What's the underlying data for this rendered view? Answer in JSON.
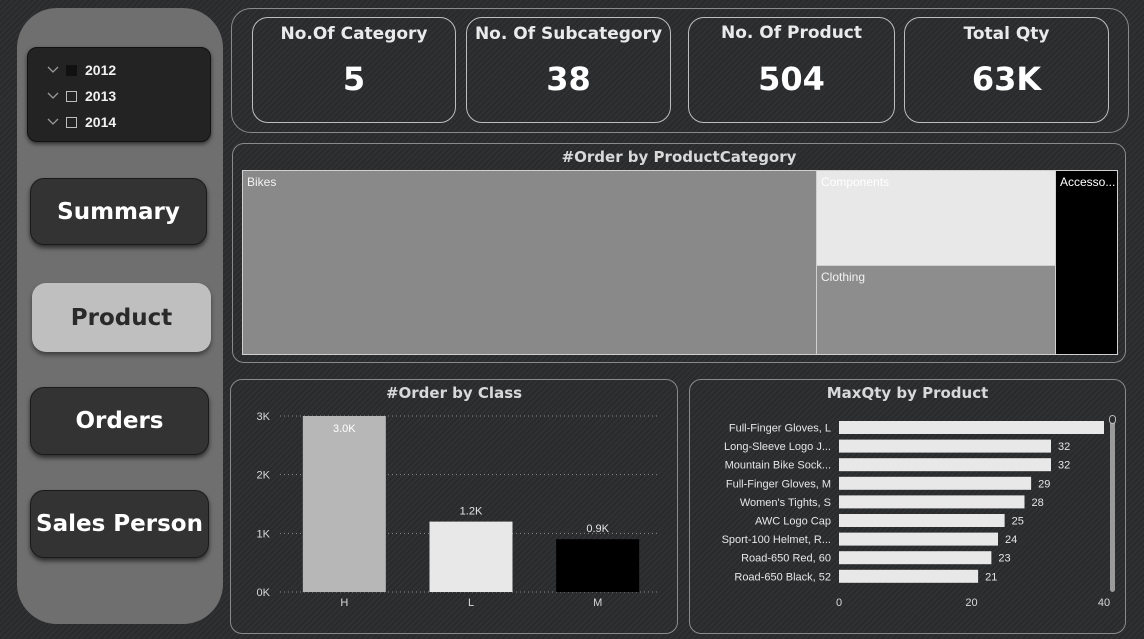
{
  "slicer": {
    "years": [
      {
        "label": "2012",
        "checked": true
      },
      {
        "label": "2013",
        "checked": false
      },
      {
        "label": "2014",
        "checked": false
      }
    ]
  },
  "nav": {
    "summary": "Summary",
    "product": "Product",
    "orders": "Orders",
    "sales_person": "Sales Person"
  },
  "kpis": [
    {
      "title": "No.Of Category",
      "value": "5"
    },
    {
      "title": "No. Of Subcategory",
      "value": "38"
    },
    {
      "title": "No. Of Product",
      "value": "504"
    },
    {
      "title": "Total Qty",
      "value": "63K"
    }
  ],
  "treemap": {
    "title": "#Order by ProductCategory",
    "cells": [
      {
        "label": "Bikes",
        "color": "#898989",
        "text_color": "#f2f2f2"
      },
      {
        "label": "Components",
        "color": "#e8e8e8",
        "text_color": "#ffffff"
      },
      {
        "label": "Clothing",
        "color": "#8d8d8d",
        "text_color": "#f2f2f2"
      },
      {
        "label": "Accesso...",
        "color": "#000000",
        "text_color": "#ffffff"
      }
    ]
  },
  "chart_data": [
    {
      "type": "bar",
      "title": "#Order by Class",
      "categories": [
        "H",
        "L",
        "M"
      ],
      "values": [
        3000,
        1200,
        900
      ],
      "data_labels": [
        "3.0K",
        "1.2K",
        "0.9K"
      ],
      "colors": [
        "#b7b7b7",
        "#e8e8e8",
        "#000000"
      ],
      "yticks": [
        "0K",
        "1K",
        "2K",
        "3K"
      ],
      "ylim": [
        0,
        3000
      ],
      "grid": true
    },
    {
      "type": "bar",
      "orientation": "horizontal",
      "title": "MaxQty by Product",
      "categories": [
        "Full-Finger Gloves, L",
        "Long-Sleeve Logo J...",
        "Mountain Bike Sock...",
        "Full-Finger Gloves, M",
        "Women's Tights, S",
        "AWC Logo Cap",
        "Sport-100 Helmet, R...",
        "Road-650 Red, 60",
        "Road-650 Black, 52"
      ],
      "values": [
        40,
        32,
        32,
        29,
        28,
        25,
        24,
        23,
        21
      ],
      "data_labels": [
        "",
        "32",
        "32",
        "29",
        "28",
        "25",
        "24",
        "23",
        "21"
      ],
      "xticks": [
        "0",
        "20",
        "40"
      ],
      "xlim": [
        0,
        40
      ],
      "bar_color": "#e8e8e8"
    }
  ]
}
